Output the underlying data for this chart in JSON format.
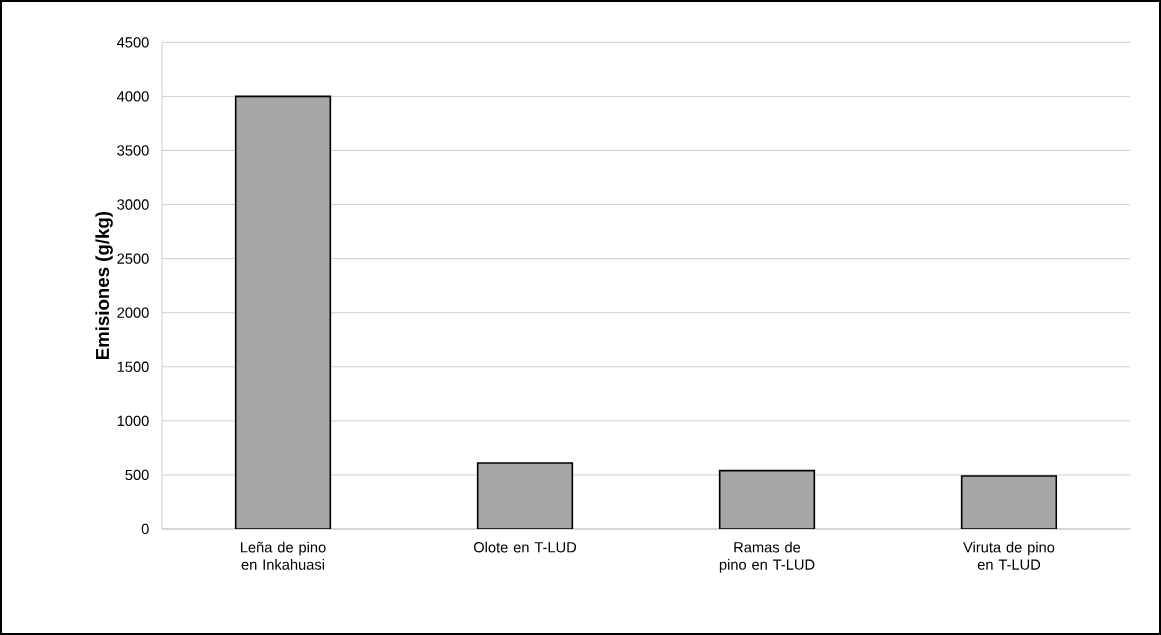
{
  "chart_data": {
    "type": "bar",
    "ylabel": "Emisiones (g/kg)",
    "categories": [
      "Leña de pino en Inkahuasi",
      "Olote en T-LUD",
      "Ramas de pino en T-LUD",
      "Viruta de pino en T-LUD"
    ],
    "values": [
      4000,
      610,
      540,
      490
    ],
    "color": "#a6a6a6",
    "ylim": [
      0,
      4500
    ],
    "yticks": [
      0,
      500,
      1000,
      1500,
      2000,
      2500,
      3000,
      3500,
      4000,
      4500
    ],
    "grid": "y"
  }
}
